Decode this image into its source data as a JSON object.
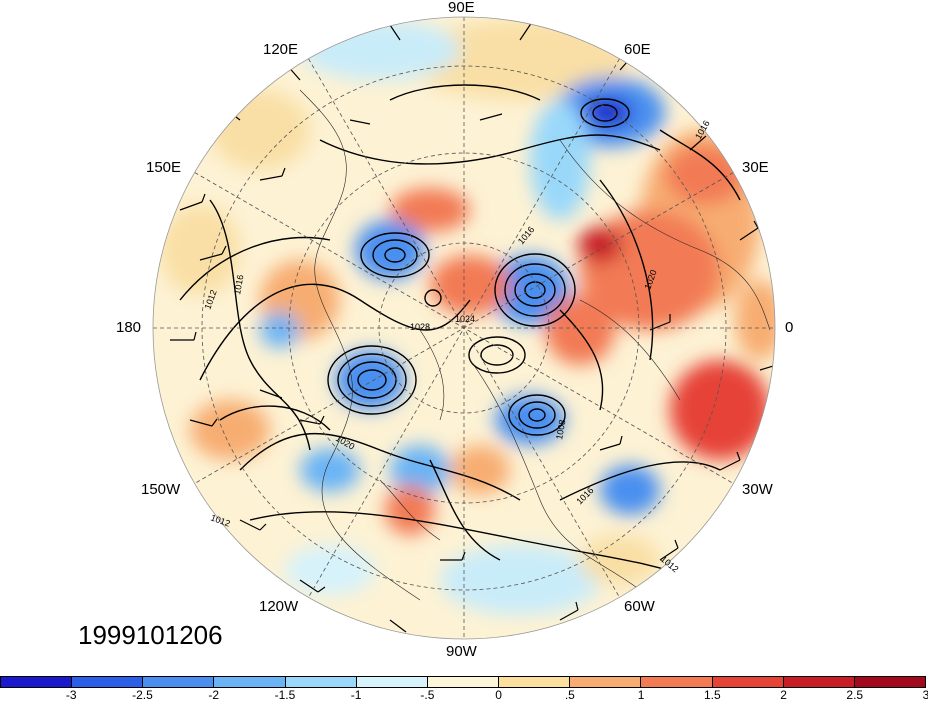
{
  "map": {
    "projection": "north-polar-stereographic",
    "fields": [
      "standardized-anomaly-shading",
      "sea-level-pressure-contours",
      "wind-barbs"
    ],
    "timestamp": "1999101206",
    "longitude_labels": {
      "lon_90E": "90E",
      "lon_60E": "60E",
      "lon_120E": "120E",
      "lon_30E": "30E",
      "lon_150E": "150E",
      "lon_180": "180",
      "lon_0": "0",
      "lon_150W": "150W",
      "lon_30W": "30W",
      "lon_120W": "120W",
      "lon_60W": "60W",
      "lon_90W": "90W"
    },
    "contour_labels": [
      "1016",
      "1012",
      "1020",
      "1024",
      "1028",
      "1008"
    ]
  },
  "colorbar": {
    "colors": [
      "#1a1acc",
      "#2a5fe6",
      "#4a8ff0",
      "#6ab4f5",
      "#9ad8fa",
      "#d6f2fb",
      "#fdf5d8",
      "#fbdf9e",
      "#f7ad72",
      "#f27a55",
      "#e64337",
      "#c81d26",
      "#a3091c"
    ],
    "tick_labels": [
      "-3",
      "-2.5",
      "-2",
      "-1.5",
      "-1",
      "-.5",
      "0",
      ".5",
      "1",
      "1.5",
      "2",
      "2.5",
      "3"
    ]
  }
}
